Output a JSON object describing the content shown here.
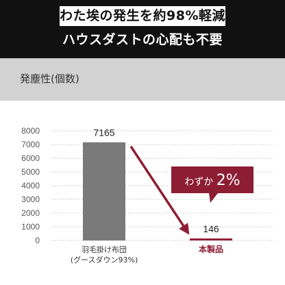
{
  "header": {
    "headline": "わた埃の発生を約98%軽減",
    "subline": "ハウスダストの心配も不要"
  },
  "metric_label": "発塵性(個数)",
  "callout": {
    "prefix": "わずか",
    "value": "2%"
  },
  "colors": {
    "header_bg": "#111111",
    "band_bg": "#d2d2d2",
    "bar_gray": "#7a7a7a",
    "accent": "#8c1d33"
  },
  "chart_data": {
    "type": "bar",
    "title": "",
    "ylabel": "",
    "xlabel": "",
    "ylim": [
      0,
      8000
    ],
    "yticks": [
      0,
      1000,
      2000,
      3000,
      4000,
      5000,
      6000,
      7000,
      8000
    ],
    "grid": true,
    "categories": [
      {
        "lines": [
          "羽毛掛け布団",
          "(グースダウン93%)"
        ],
        "value": 7165,
        "label": "7165",
        "color": "#7a7a7a"
      },
      {
        "lines": [
          "本製品"
        ],
        "value": 146,
        "label": "146",
        "color": "#8c1d33",
        "accent": true
      }
    ]
  }
}
